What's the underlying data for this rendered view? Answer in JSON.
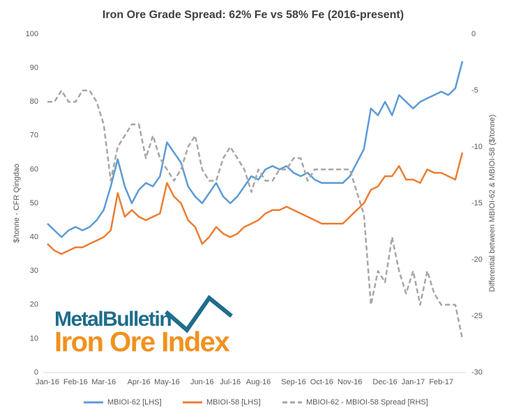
{
  "chart_data": {
    "type": "line",
    "title": "Iron Ore Grade Spread: 62% Fe vs 58% Fe (2016-present)",
    "y_label": "$/tonne - CFR Qingdao",
    "y2_label": "Differential between MBIOI-62 & MBIOI-58 ($/tonne)",
    "logo": {
      "line1": "MetalBulletin",
      "line2": "Iron Ore Index"
    },
    "categories": [
      "Jan-16",
      null,
      null,
      null,
      "Feb-16",
      null,
      null,
      null,
      "Mar-16",
      null,
      null,
      null,
      null,
      "Apr-16",
      null,
      null,
      null,
      "May-16",
      null,
      null,
      null,
      null,
      "Jun-16",
      null,
      null,
      null,
      "Jul-16",
      null,
      null,
      null,
      "Aug-16",
      null,
      null,
      null,
      null,
      "Sep-16",
      null,
      null,
      null,
      "Oct-16",
      null,
      null,
      null,
      "Nov-16",
      null,
      null,
      null,
      null,
      "Dec-16",
      null,
      null,
      null,
      "Jan-17",
      null,
      null,
      null,
      "Feb-17",
      null,
      null,
      null
    ],
    "series": [
      {
        "name": "MBIOI-62 [LHS]",
        "color": "#5b9bd5",
        "dash": false,
        "axis": "y",
        "values": [
          44,
          42,
          40,
          42,
          43,
          42,
          43,
          45,
          48,
          55,
          63,
          55,
          50,
          54,
          56,
          55,
          58,
          68,
          65,
          62,
          55,
          52,
          50,
          53,
          56,
          52,
          50,
          52,
          55,
          58,
          57,
          60,
          61,
          60,
          61,
          59,
          58,
          59,
          57,
          56,
          56,
          56,
          56,
          58,
          62,
          66,
          78,
          76,
          80,
          76,
          82,
          80,
          78,
          80,
          81,
          82,
          83,
          82,
          84,
          92
        ]
      },
      {
        "name": "MBIOI-58 [LHS]",
        "color": "#ed7d31",
        "dash": false,
        "axis": "y",
        "values": [
          38,
          36,
          35,
          36,
          37,
          37,
          38,
          39,
          40,
          42,
          53,
          46,
          48,
          46,
          45,
          46,
          47,
          56,
          52,
          50,
          45,
          43,
          38,
          40,
          43,
          41,
          40,
          41,
          43,
          44,
          45,
          47,
          48,
          48,
          49,
          48,
          47,
          46,
          45,
          44,
          44,
          44,
          44,
          46,
          48,
          50,
          54,
          55,
          58,
          58,
          61,
          57,
          57,
          56,
          60,
          59,
          59,
          58,
          57,
          65
        ]
      },
      {
        "name": "MBIOI-62 - MBIOI-58 Spread [RHS]",
        "color": "#a6a6a6",
        "dash": true,
        "axis": "y2",
        "values": [
          -6,
          -6,
          -5,
          -6,
          -6,
          -5,
          -5,
          -6,
          -8,
          -13,
          -10,
          -9,
          -8,
          -8,
          -11,
          -9,
          -11,
          -12,
          -13,
          -12,
          -10,
          -9,
          -12,
          -13,
          -13,
          -11,
          -10,
          -11,
          -12,
          -14,
          -12,
          -13,
          -13,
          -12,
          -12,
          -11,
          -11,
          -13,
          -12,
          -12,
          -12,
          -12,
          -12,
          -12,
          -14,
          -16,
          -24,
          -21,
          -22,
          -18,
          -21,
          -23,
          -21,
          -24,
          -21,
          -23,
          -24,
          -24,
          -24,
          -27
        ]
      }
    ],
    "ylim": [
      0,
      100
    ],
    "yticks": [
      0,
      10,
      20,
      30,
      40,
      50,
      60,
      70,
      80,
      90,
      100
    ],
    "y2lim": [
      -30,
      0
    ],
    "y2ticks": [
      0,
      -5,
      -10,
      -15,
      -20,
      -25,
      -30
    ],
    "legend": "bottom",
    "grid": false
  }
}
